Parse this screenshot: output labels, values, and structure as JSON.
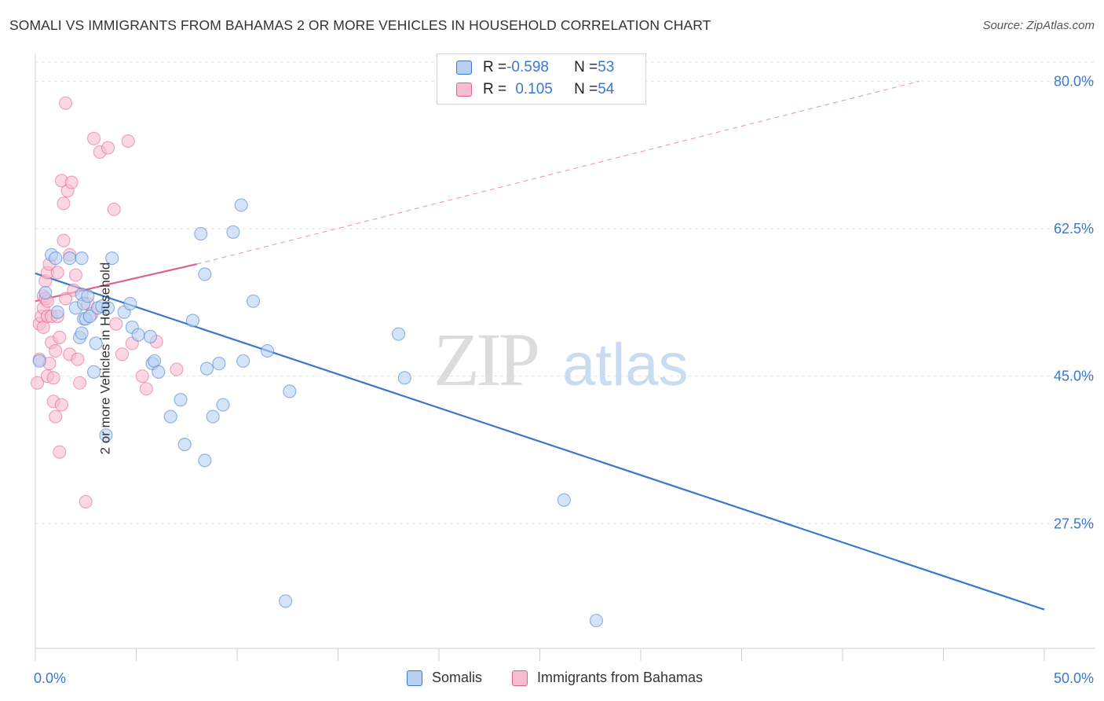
{
  "title": "SOMALI VS IMMIGRANTS FROM BAHAMAS 2 OR MORE VEHICLES IN HOUSEHOLD CORRELATION CHART",
  "source": "Source: ZipAtlas.com",
  "watermark": {
    "zip": "ZIP",
    "atlas": "atlas"
  },
  "legend": {
    "rows": [
      {
        "r_label": "R = ",
        "r_value": "-0.598",
        "n_label": "N = ",
        "n_value": "53"
      },
      {
        "r_label": "R = ",
        "r_value": "0.105",
        "n_label": "N = ",
        "n_value": "54"
      }
    ]
  },
  "bottom_legend": {
    "somali": "Somalis",
    "bahamas": "Immigrants from Bahamas"
  },
  "colors": {
    "blue": "#3a78d0",
    "blue_fill": "#b7d0f1",
    "pink": "#e0608e",
    "pink_fill": "#f6bdd0",
    "grid": "#e3e3e3"
  },
  "chart_data": {
    "type": "scatter",
    "title": "SOMALI VS IMMIGRANTS FROM BAHAMAS 2 OR MORE VEHICLES IN HOUSEHOLD CORRELATION CHART",
    "xlabel": "",
    "ylabel": "2 or more Vehicles in Household",
    "xlim": [
      0,
      50
    ],
    "ylim": [
      12.7,
      83.3
    ],
    "x_tick_labels": [
      {
        "value": 0,
        "label": "0.0%"
      },
      {
        "value": 50,
        "label": "50.0%"
      }
    ],
    "y_tick_labels": [
      {
        "value": 80,
        "label": "80.0%"
      },
      {
        "value": 62.5,
        "label": "62.5%"
      },
      {
        "value": 45,
        "label": "45.0%"
      },
      {
        "value": 27.5,
        "label": "27.5%"
      }
    ],
    "series": [
      {
        "name": "Somalis",
        "color": "#3a78d0",
        "trend": {
          "x0": 0,
          "y0": 57.2,
          "x1": 50,
          "y1": 17.3,
          "dashed_extension": false
        },
        "points": [
          [
            0.2,
            46.8
          ],
          [
            0.5,
            54.9
          ],
          [
            0.8,
            59.4
          ],
          [
            1.0,
            59.0
          ],
          [
            1.1,
            52.6
          ],
          [
            1.7,
            59.0
          ],
          [
            2.0,
            53.1
          ],
          [
            2.2,
            49.6
          ],
          [
            2.3,
            50.1
          ],
          [
            2.3,
            59.0
          ],
          [
            2.3,
            54.7
          ],
          [
            2.4,
            53.6
          ],
          [
            2.4,
            51.8
          ],
          [
            2.5,
            51.8
          ],
          [
            2.6,
            54.5
          ],
          [
            2.7,
            52.1
          ],
          [
            3.1,
            53.1
          ],
          [
            3.0,
            48.9
          ],
          [
            3.3,
            53.3
          ],
          [
            3.6,
            53.1
          ],
          [
            2.9,
            45.5
          ],
          [
            3.5,
            38.0
          ],
          [
            3.8,
            59.0
          ],
          [
            4.4,
            52.6
          ],
          [
            4.7,
            53.6
          ],
          [
            4.8,
            50.8
          ],
          [
            5.1,
            49.9
          ],
          [
            5.7,
            49.7
          ],
          [
            5.8,
            46.5
          ],
          [
            5.9,
            46.8
          ],
          [
            6.1,
            45.5
          ],
          [
            6.7,
            40.2
          ],
          [
            7.2,
            42.2
          ],
          [
            7.4,
            36.9
          ],
          [
            7.8,
            51.6
          ],
          [
            8.2,
            61.9
          ],
          [
            8.4,
            57.1
          ],
          [
            8.5,
            45.9
          ],
          [
            8.4,
            35.0
          ],
          [
            8.8,
            40.2
          ],
          [
            9.1,
            46.5
          ],
          [
            9.3,
            41.6
          ],
          [
            9.8,
            62.1
          ],
          [
            10.2,
            65.3
          ],
          [
            10.3,
            46.8
          ],
          [
            10.8,
            53.9
          ],
          [
            11.5,
            48.0
          ],
          [
            12.4,
            18.3
          ],
          [
            12.6,
            43.2
          ],
          [
            18.0,
            50.0
          ],
          [
            18.3,
            44.8
          ],
          [
            26.2,
            30.3
          ],
          [
            27.8,
            16.0
          ]
        ]
      },
      {
        "name": "Immigrants from Bahamas",
        "color": "#e0608e",
        "trend": {
          "x0": 0,
          "y0": 53.9,
          "x1": 8.0,
          "y1": 58.3,
          "dashed_extension": true,
          "ext_x1": 43.8,
          "ext_y1": 80.0
        },
        "points": [
          [
            0.1,
            44.2
          ],
          [
            0.2,
            51.2
          ],
          [
            0.2,
            47.0
          ],
          [
            0.3,
            52.1
          ],
          [
            0.4,
            50.8
          ],
          [
            0.4,
            53.1
          ],
          [
            0.4,
            54.5
          ],
          [
            0.5,
            54.2
          ],
          [
            0.5,
            56.3
          ],
          [
            0.6,
            57.3
          ],
          [
            0.6,
            53.9
          ],
          [
            0.6,
            52.1
          ],
          [
            0.6,
            45.0
          ],
          [
            0.7,
            58.3
          ],
          [
            0.7,
            46.5
          ],
          [
            0.8,
            52.1
          ],
          [
            0.8,
            49.0
          ],
          [
            0.9,
            44.8
          ],
          [
            0.9,
            42.0
          ],
          [
            1.0,
            48.0
          ],
          [
            1.0,
            40.2
          ],
          [
            1.1,
            57.3
          ],
          [
            1.1,
            52.1
          ],
          [
            1.2,
            36.0
          ],
          [
            1.2,
            49.6
          ],
          [
            1.3,
            41.6
          ],
          [
            1.3,
            68.2
          ],
          [
            1.4,
            65.5
          ],
          [
            1.4,
            61.1
          ],
          [
            1.5,
            77.4
          ],
          [
            1.5,
            54.2
          ],
          [
            1.6,
            67.0
          ],
          [
            1.7,
            59.4
          ],
          [
            1.7,
            47.6
          ],
          [
            1.8,
            68.0
          ],
          [
            1.9,
            55.2
          ],
          [
            2.0,
            57.0
          ],
          [
            2.1,
            47.0
          ],
          [
            2.2,
            44.2
          ],
          [
            2.5,
            30.1
          ],
          [
            2.6,
            53.6
          ],
          [
            2.8,
            52.4
          ],
          [
            2.9,
            73.2
          ],
          [
            3.2,
            71.6
          ],
          [
            3.6,
            72.1
          ],
          [
            3.9,
            64.8
          ],
          [
            4.0,
            51.2
          ],
          [
            4.3,
            47.6
          ],
          [
            4.6,
            72.9
          ],
          [
            4.8,
            48.9
          ],
          [
            5.3,
            45.0
          ],
          [
            5.5,
            43.5
          ],
          [
            6.0,
            49.1
          ],
          [
            7.0,
            45.8
          ]
        ]
      }
    ]
  }
}
